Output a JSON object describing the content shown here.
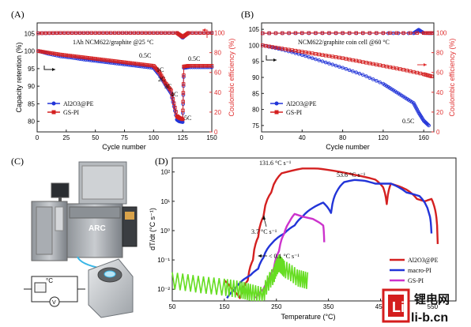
{
  "colors": {
    "al2o3_pe": "#2234d8",
    "gs_pi": "#d42020",
    "macro_pi": "#2234d8",
    "gs_pi_dsc": "#cc33cc",
    "green": "#66dd22",
    "ce_axis": "#e03030",
    "watermark": "#d41d1d"
  },
  "panels": {
    "A": {
      "label": "(A)",
      "title": "1Ah NCM622/graphite @25 °C",
      "xlabel": "Cycle number",
      "ylabel_left": "Capacity retention (%)",
      "ylabel_right": "Coulombic efficiency (%)",
      "x_ticks": [
        "0",
        "25",
        "50",
        "75",
        "100",
        "125",
        "150"
      ],
      "y_ticks_left": [
        "80",
        "85",
        "90",
        "95",
        "100",
        "105"
      ],
      "y_ticks_right": [
        "0",
        "20",
        "40",
        "60",
        "80",
        "100"
      ],
      "rate_labels": [
        "0.5C",
        "1C",
        "2C",
        "3C",
        "4C",
        "5C",
        "0.5C"
      ],
      "legend": [
        "Al2O3@PE",
        "GS-PI"
      ]
    },
    "B": {
      "label": "(B)",
      "title": "NCM622/graphite coin cell @60 °C",
      "xlabel": "Cycle number",
      "ylabel_right": "Coulombic efficiency (%)",
      "x_ticks": [
        "0",
        "40",
        "80",
        "120",
        "160"
      ],
      "y_ticks_left": [
        "75",
        "80",
        "85",
        "90",
        "95",
        "100",
        "105"
      ],
      "y_ticks_right": [
        "0",
        "20",
        "40",
        "60",
        "80",
        "100"
      ],
      "rate_label": "0.5C",
      "legend": [
        "Al2O3@PE",
        "GS-PI"
      ]
    },
    "C": {
      "label": "(C)",
      "arc_label": "ARC",
      "temp_unit": "°C",
      "meter": "V"
    },
    "D": {
      "label": "(D)",
      "xlabel": "Temperature (°C)",
      "ylabel": "dT/dt (°C s⁻¹)",
      "x_ticks": [
        "50",
        "150",
        "250",
        "350",
        "450",
        "550"
      ],
      "y_ticks": [
        "10⁻²",
        "10⁻¹",
        "10⁰",
        "10¹",
        "10²"
      ],
      "annotations": [
        "131.6 °C s⁻¹",
        "53.6 °C s⁻¹",
        "3.7 °C s⁻¹",
        "< 0.1 °C s⁻¹"
      ],
      "legend": [
        "Al2O3@PE",
        "macro-PI",
        "GS-PI"
      ]
    }
  },
  "watermark": {
    "glyph": "Li",
    "line1": "锂电网",
    "line2": "li-b.cn"
  },
  "chart_data": [
    {
      "type": "line",
      "panel": "A",
      "title": "1Ah NCM622/graphite @25 °C",
      "xlabel": "Cycle number",
      "ylabel": "Capacity retention (%)",
      "xlim": [
        0,
        150
      ],
      "ylim": [
        77,
        108
      ],
      "ylim_right": [
        0,
        110
      ],
      "series": [
        {
          "name": "Al2O3@PE",
          "axis": "left",
          "x": [
            1,
            10,
            20,
            30,
            40,
            50,
            60,
            70,
            80,
            90,
            100,
            105,
            110,
            115,
            120,
            122,
            125,
            126,
            130,
            140,
            150
          ],
          "y": [
            100,
            99.2,
            98.5,
            98.1,
            97.6,
            97.2,
            96.8,
            96.4,
            96.0,
            95.6,
            95.2,
            93.2,
            90.5,
            88.0,
            80.5,
            80.0,
            79.8,
            95.2,
            95.4,
            95.4,
            95.4
          ]
        },
        {
          "name": "GS-PI",
          "axis": "left",
          "x": [
            1,
            10,
            20,
            30,
            40,
            50,
            60,
            70,
            80,
            90,
            100,
            105,
            110,
            115,
            120,
            122,
            125,
            126,
            130,
            140,
            150
          ],
          "y": [
            100,
            99.5,
            99.0,
            98.6,
            98.2,
            97.8,
            97.4,
            97.0,
            96.6,
            96.2,
            95.8,
            94.0,
            91.0,
            88.8,
            81.5,
            81.0,
            80.6,
            95.6,
            95.8,
            95.8,
            95.8
          ]
        },
        {
          "name": "Al2O3@PE CE",
          "axis": "right",
          "x": [
            1,
            20,
            40,
            60,
            80,
            100,
            120,
            125,
            130,
            150
          ],
          "y": [
            99.5,
            99.8,
            99.8,
            99.9,
            99.9,
            99.9,
            99.9,
            95,
            99.9,
            99.9
          ]
        },
        {
          "name": "GS-PI CE",
          "axis": "right",
          "x": [
            1,
            20,
            40,
            60,
            80,
            100,
            120,
            125,
            130,
            150
          ],
          "y": [
            99.6,
            99.9,
            99.9,
            99.9,
            99.9,
            99.9,
            99.9,
            96,
            99.9,
            99.9
          ]
        }
      ]
    },
    {
      "type": "line",
      "panel": "B",
      "title": "NCM622/graphite coin cell @60 °C",
      "xlabel": "Cycle number",
      "xlim": [
        0,
        170
      ],
      "ylim": [
        73,
        107
      ],
      "ylim_right": [
        0,
        110
      ],
      "series": [
        {
          "name": "Al2O3@PE",
          "axis": "left",
          "x": [
            1,
            20,
            40,
            60,
            80,
            100,
            120,
            130,
            140,
            150,
            155,
            160,
            165
          ],
          "y": [
            100,
            98.7,
            97.0,
            95.0,
            93.0,
            90.8,
            88.0,
            86.0,
            84.0,
            82.0,
            79.0,
            76.5,
            75.0
          ]
        },
        {
          "name": "GS-PI",
          "axis": "left",
          "x": [
            1,
            20,
            40,
            60,
            80,
            100,
            120,
            140,
            160,
            168
          ],
          "y": [
            100,
            99.0,
            98.0,
            97.0,
            96.0,
            94.8,
            93.6,
            92.4,
            91.0,
            90.3
          ]
        },
        {
          "name": "Al2O3@PE CE",
          "axis": "right",
          "x": [
            1,
            40,
            80,
            120,
            150,
            155,
            160,
            168
          ],
          "y": [
            99.5,
            99.6,
            99.6,
            99.6,
            99.6,
            103,
            99.8,
            99.6
          ]
        },
        {
          "name": "GS-PI CE",
          "axis": "right",
          "x": [
            1,
            40,
            80,
            120,
            160,
            168
          ],
          "y": [
            99.6,
            99.8,
            99.8,
            99.8,
            99.8,
            99.8
          ]
        }
      ]
    },
    {
      "type": "line",
      "panel": "D",
      "xlabel": "Temperature (°C)",
      "ylabel": "dT/dt (°C s⁻¹)",
      "yscale": "log",
      "xlim": [
        50,
        595
      ],
      "ylim": [
        0.004,
        300
      ],
      "series": [
        {
          "name": "Al2O3@PE",
          "x": [
            150,
            165,
            180,
            195,
            205,
            215,
            225,
            240,
            260,
            300,
            330,
            360,
            400,
            440,
            455,
            462,
            470,
            500,
            520,
            535,
            548,
            555,
            560
          ],
          "y": [
            0.02,
            0.01,
            0.005,
            0.02,
            0.1,
            0.6,
            3,
            20,
            90,
            131.6,
            131,
            110,
            80,
            55,
            30,
            8,
            40,
            25,
            12,
            10,
            12,
            5,
            0.35
          ]
        },
        {
          "name": "macro-PI",
          "x": [
            155,
            170,
            185,
            200,
            215,
            225,
            240,
            265,
            285,
            300,
            320,
            340,
            355,
            365,
            380,
            400,
            420,
            440,
            470,
            500,
            525,
            545,
            548
          ],
          "y": [
            0.005,
            0.01,
            0.02,
            0.03,
            0.05,
            0.12,
            0.35,
            0.8,
            1.5,
            3,
            6,
            9,
            4,
            20,
            45,
            53.6,
            50,
            40,
            40,
            20,
            15,
            3,
            0.8
          ]
        },
        {
          "name": "GS-PI",
          "x": [
            210,
            225,
            235,
            245,
            255,
            265,
            275,
            285,
            300,
            320,
            340,
            342
          ],
          "y": [
            0.005,
            0.01,
            0.02,
            0.05,
            0.2,
            0.8,
            2,
            3.7,
            3.0,
            2.5,
            1.5,
            0.4
          ]
        },
        {
          "name": "green baseline",
          "x": [
            50,
            100,
            150,
            180,
            200,
            225,
            245,
            255,
            265,
            290,
            310
          ],
          "y": [
            0.02,
            0.015,
            0.012,
            0.01,
            0.008,
            0.006,
            0.03,
            0.08,
            0.05,
            0.025,
            0.02
          ]
        }
      ]
    }
  ]
}
